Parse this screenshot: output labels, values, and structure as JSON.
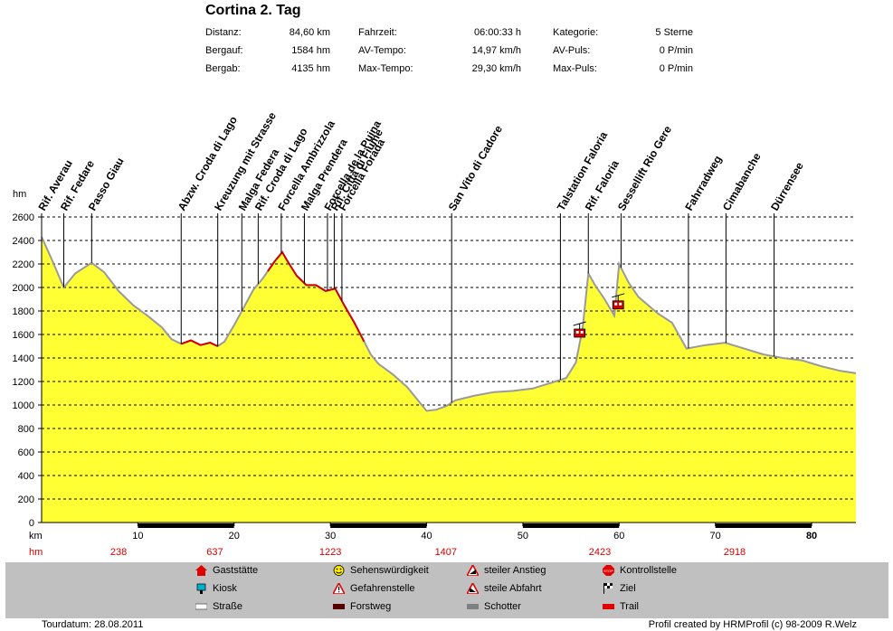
{
  "header": {
    "title": "Cortina 2. Tag",
    "stats": [
      {
        "label": "Distanz:",
        "value": "84,60 km"
      },
      {
        "label": "Bergauf:",
        "value": "1584 hm"
      },
      {
        "label": "Bergab:",
        "value": "4135 hm"
      },
      {
        "label": "Fahrzeit:",
        "value": "06:00:33 h"
      },
      {
        "label": "AV-Tempo:",
        "value": "14,97 km/h"
      },
      {
        "label": "Max-Tempo:",
        "value": "29,30 km/h"
      },
      {
        "label": "Kategorie:",
        "value": "5 Sterne"
      },
      {
        "label": "AV-Puls:",
        "value": "0 P/min"
      },
      {
        "label": "Max-Puls:",
        "value": "0 P/min"
      }
    ]
  },
  "chart_data": {
    "type": "area",
    "ylabel": "hm",
    "xlabel": "km",
    "ylim": [
      0,
      2600
    ],
    "xlim": [
      0,
      84.6
    ],
    "yticks": [
      0,
      200,
      400,
      600,
      800,
      1000,
      1200,
      1400,
      1600,
      1800,
      2000,
      2200,
      2400,
      2600
    ],
    "xticks": [
      "10",
      "20",
      "30",
      "40",
      "50",
      "60",
      "70",
      "80"
    ],
    "xtick_values": [
      10,
      20,
      30,
      40,
      50,
      60,
      70,
      80
    ],
    "grid": true,
    "fill_color": "#ffff33",
    "profile": [
      [
        0,
        2430
      ],
      [
        1,
        2250
      ],
      [
        2.3,
        2000
      ],
      [
        3.5,
        2120
      ],
      [
        5.2,
        2210
      ],
      [
        6.5,
        2130
      ],
      [
        8,
        1970
      ],
      [
        9.5,
        1850
      ],
      [
        11,
        1760
      ],
      [
        12.5,
        1660
      ],
      [
        13.5,
        1560
      ],
      [
        14.5,
        1520
      ],
      [
        15.5,
        1550
      ],
      [
        16.5,
        1510
      ],
      [
        17.5,
        1530
      ],
      [
        18.3,
        1500
      ],
      [
        19,
        1540
      ],
      [
        20,
        1680
      ],
      [
        21,
        1830
      ],
      [
        22,
        1980
      ],
      [
        23,
        2080
      ],
      [
        24.2,
        2220
      ],
      [
        25,
        2300
      ],
      [
        25.5,
        2230
      ],
      [
        26.5,
        2100
      ],
      [
        27.5,
        2020
      ],
      [
        28.5,
        2020
      ],
      [
        29.5,
        1970
      ],
      [
        30.5,
        1990
      ],
      [
        31.5,
        1840
      ],
      [
        32.5,
        1700
      ],
      [
        33.5,
        1540
      ],
      [
        34.2,
        1430
      ],
      [
        35,
        1350
      ],
      [
        36.5,
        1260
      ],
      [
        38,
        1150
      ],
      [
        39,
        1050
      ],
      [
        40,
        950
      ],
      [
        41,
        960
      ],
      [
        42,
        990
      ],
      [
        43,
        1040
      ],
      [
        45,
        1080
      ],
      [
        47,
        1110
      ],
      [
        49,
        1120
      ],
      [
        51,
        1140
      ],
      [
        53,
        1190
      ],
      [
        54.5,
        1230
      ],
      [
        55.5,
        1360
      ],
      [
        56.2,
        1650
      ],
      [
        56.8,
        2120
      ],
      [
        57.5,
        2020
      ],
      [
        58.5,
        1900
      ],
      [
        59.5,
        1760
      ],
      [
        60,
        2200
      ],
      [
        61,
        2040
      ],
      [
        62,
        1920
      ],
      [
        64,
        1780
      ],
      [
        65.5,
        1700
      ],
      [
        67,
        1480
      ],
      [
        69,
        1510
      ],
      [
        71,
        1530
      ],
      [
        73,
        1480
      ],
      [
        75,
        1430
      ],
      [
        77,
        1400
      ],
      [
        79,
        1380
      ],
      [
        81,
        1330
      ],
      [
        83,
        1290
      ],
      [
        84.6,
        1270
      ]
    ],
    "trail_ranges": [
      [
        14.5,
        18.3
      ],
      [
        23.5,
        33.5
      ]
    ],
    "waypoints": [
      {
        "name": "Rif. Averau",
        "km": 0
      },
      {
        "name": "Rif. Fedare",
        "km": 2.3
      },
      {
        "name": "Passo Giau",
        "km": 5.2
      },
      {
        "name": "Abzw. Croda di Lago",
        "km": 14.5
      },
      {
        "name": "Kreuzung mit Strasse",
        "km": 18.3
      },
      {
        "name": "Malga Federa",
        "km": 20.8
      },
      {
        "name": "Rif. Croda di Lago",
        "km": 22.5
      },
      {
        "name": "Forcella Ambrizzola",
        "km": 24.9
      },
      {
        "name": "Malga Prendera",
        "km": 27.3
      },
      {
        "name": "Forcella de la Puina",
        "km": 29.7
      },
      {
        "name": "Rif. Città di Fiume",
        "km": 30.4
      },
      {
        "name": "Forcella Forada",
        "km": 31.2
      },
      {
        "name": "San Vito di Cadore",
        "km": 42.6
      },
      {
        "name": "Talstation Faloria",
        "km": 53.9
      },
      {
        "name": "Rif. Faloria",
        "km": 56.8
      },
      {
        "name": "Sessellift Rio Gere",
        "km": 60.2
      },
      {
        "name": "Fahrradweg",
        "km": 67.2
      },
      {
        "name": "Cimabanche",
        "km": 71.1
      },
      {
        "name": "Dürrensee",
        "km": 76.1
      }
    ],
    "icons": [
      {
        "name": "cable-car-icon",
        "km": 55.9,
        "hm": 1600
      },
      {
        "name": "cable-car-icon",
        "km": 59.9,
        "hm": 1840
      }
    ],
    "surface_bar": [
      {
        "from": 0,
        "to": 10,
        "type": "Straße"
      },
      {
        "from": 10,
        "to": 20,
        "type": "Forstweg"
      },
      {
        "from": 20,
        "to": 30,
        "type": "Straße"
      },
      {
        "from": 30,
        "to": 40,
        "type": "Forstweg"
      },
      {
        "from": 40,
        "to": 50,
        "type": "Straße"
      },
      {
        "from": 50,
        "to": 60,
        "type": "Forstweg"
      },
      {
        "from": 60,
        "to": 70,
        "type": "Straße"
      },
      {
        "from": 70,
        "to": 80,
        "type": "Forstweg"
      },
      {
        "from": 80,
        "to": 84.6,
        "type": "Straße"
      }
    ],
    "hm_row_label": "hm",
    "hm_row": [
      {
        "km": 8,
        "value": "238"
      },
      {
        "km": 18,
        "value": "637"
      },
      {
        "km": 30,
        "value": "1223"
      },
      {
        "km": 42,
        "value": "1407"
      },
      {
        "km": 58,
        "value": "2423"
      },
      {
        "km": 72,
        "value": "2918"
      }
    ]
  },
  "legend": {
    "items": [
      {
        "label": "Gaststätte",
        "icon": "house-icon",
        "color": "#e00000"
      },
      {
        "label": "Kiosk",
        "icon": "kiosk-icon",
        "color": "#00b0d0"
      },
      {
        "label": "Straße",
        "icon": "road-swatch",
        "color": "#ffffff"
      },
      {
        "label": "Sehenswürdigkeit",
        "icon": "smiley-icon",
        "color": "#ffee00"
      },
      {
        "label": "Gefahrenstelle",
        "icon": "warning-icon",
        "color": "#e00000"
      },
      {
        "label": "Forstweg",
        "icon": "forest-road-swatch",
        "color": "#550000"
      },
      {
        "label": "steiler Anstieg",
        "icon": "steep-climb-icon",
        "color": "#e00000"
      },
      {
        "label": "steile Abfahrt",
        "icon": "steep-descent-icon",
        "color": "#e00000"
      },
      {
        "label": "Schotter",
        "icon": "gravel-swatch",
        "color": "#808080"
      },
      {
        "label": "Kontrollstelle",
        "icon": "stop-icon",
        "color": "#e00000"
      },
      {
        "label": "Ziel",
        "icon": "finish-flag-icon",
        "color": "#000000"
      },
      {
        "label": "Trail",
        "icon": "trail-swatch",
        "color": "#e00000"
      }
    ]
  },
  "footer": {
    "left": "Tourdatum: 28.08.2011",
    "right": "Profil created by HRMProfil (c) 98-2009 R.Welz"
  }
}
